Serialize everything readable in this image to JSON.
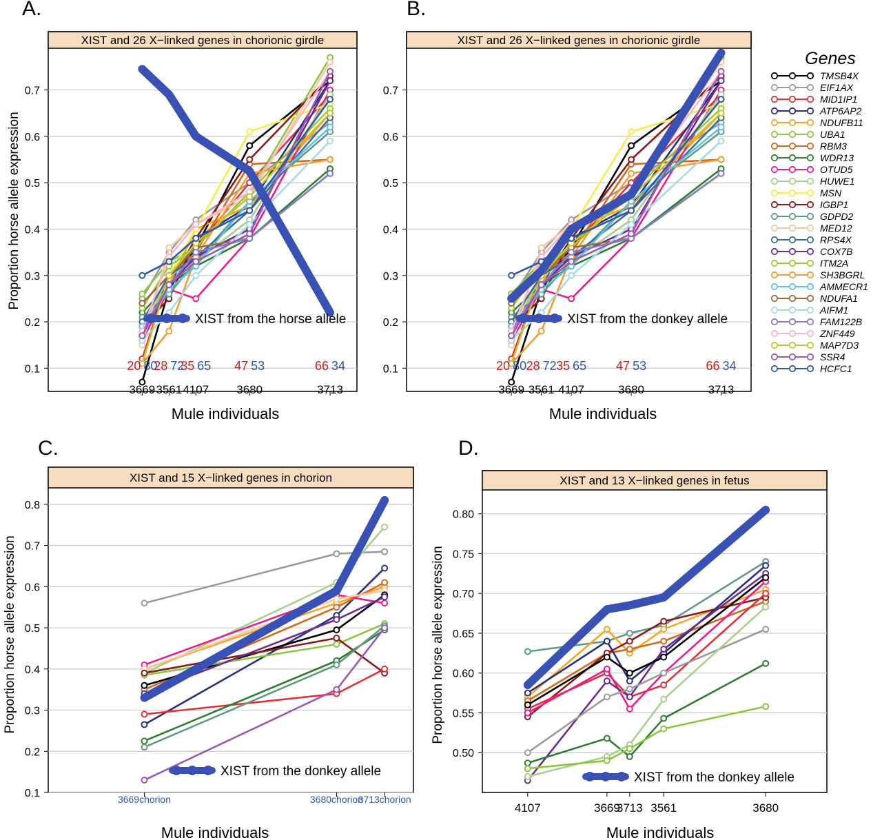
{
  "figure": {
    "xlabel": "Mule individuals",
    "ylabel": "Proportion horse allele expression",
    "legend_title": "Genes",
    "gene_names": [
      "TMSB4X",
      "EIF1AX",
      "MID1IP1",
      "ATP6AP2",
      "NDUFB11",
      "UBA1",
      "RBM3",
      "WDR13",
      "OTUD5",
      "HUWE1",
      "MSN",
      "IGBP1",
      "GDPD2",
      "MED12",
      "RPS4X",
      "COX7B",
      "ITM2A",
      "SH3BGRL",
      "AMMECR1",
      "NDUFA1",
      "AIFM1",
      "FAM122B",
      "ZNF449",
      "MAP7D3",
      "SSR4",
      "HCFC1"
    ],
    "gene_colors": [
      "#000000",
      "#9a9a9a",
      "#e0303a",
      "#2b2f7a",
      "#f5a623",
      "#8cc63f",
      "#d2691e",
      "#2e7d32",
      "#e91e8c",
      "#a8d08d",
      "#f2ee4a",
      "#8b1a1a",
      "#5f9b82",
      "#f6c7a0",
      "#3b6e8f",
      "#6a2c91",
      "#9acd32",
      "#f39c32",
      "#5bc0eb",
      "#9c6b3c",
      "#a6d9e8",
      "#7f7fcf",
      "#f7b6c8",
      "#c9c234",
      "#9b59b6",
      "#3156a8"
    ],
    "xist_color": "#3951b2",
    "horse_label_color": "#cc1f1f",
    "donkey_label_color": "#3156a8",
    "panel_header_color": "#f8dcc0"
  },
  "chart_data": [
    {
      "type": "line",
      "panel": "A.",
      "title": "XIST and 26 X−linked genes in chorionic girdle",
      "categories": [
        "3669",
        "3561",
        "4107",
        "3680",
        "3713"
      ],
      "x": [
        3.5,
        4.5,
        5.5,
        7.5,
        10.5
      ],
      "xlim": [
        0,
        11.5
      ],
      "ylim": [
        0.05,
        0.79
      ],
      "yticks": [
        0.1,
        0.2,
        0.3,
        0.4,
        0.5,
        0.6,
        0.7
      ],
      "ytick_labels": [
        "0.1",
        "0.2",
        "0.3",
        "0.4",
        "0.5",
        "0.6",
        "0.7"
      ],
      "xist": {
        "label": "XIST from the horse allele",
        "values": [
          0.745,
          0.69,
          0.6,
          0.525,
          0.22
        ]
      },
      "allele_horse": [
        "20",
        "28",
        "35",
        "47",
        "66"
      ],
      "allele_donkey": [
        "80",
        "72",
        "65",
        "53",
        "34"
      ],
      "series": [
        {
          "name": "TMSB4X",
          "values": [
            0.07,
            0.27,
            0.36,
            0.58,
            0.72
          ]
        },
        {
          "name": "EIF1AX",
          "values": [
            0.25,
            0.35,
            0.42,
            0.5,
            0.63
          ]
        },
        {
          "name": "MID1IP1",
          "values": [
            0.12,
            0.3,
            0.36,
            0.5,
            0.69
          ]
        },
        {
          "name": "ATP6AP2",
          "values": [
            0.17,
            0.28,
            0.38,
            0.45,
            0.72
          ]
        },
        {
          "name": "NDUFB11",
          "values": [
            0.2,
            0.28,
            0.4,
            0.45,
            0.65
          ]
        },
        {
          "name": "UBA1",
          "values": [
            0.26,
            0.33,
            0.36,
            0.48,
            0.77
          ]
        },
        {
          "name": "RBM3",
          "values": [
            0.24,
            0.3,
            0.35,
            0.54,
            0.55
          ]
        },
        {
          "name": "WDR13",
          "values": [
            0.22,
            0.28,
            0.32,
            0.38,
            0.53
          ]
        },
        {
          "name": "OTUD5",
          "values": [
            0.16,
            0.27,
            0.25,
            0.38,
            0.7
          ]
        },
        {
          "name": "HUWE1",
          "values": [
            0.18,
            0.3,
            0.33,
            0.42,
            0.69
          ]
        },
        {
          "name": "MSN",
          "values": [
            0.2,
            0.3,
            0.4,
            0.61,
            0.67
          ]
        },
        {
          "name": "IGBP1",
          "values": [
            0.19,
            0.25,
            0.38,
            0.55,
            0.73
          ]
        },
        {
          "name": "GDPD2",
          "values": [
            0.21,
            0.26,
            0.33,
            0.46,
            0.61
          ]
        },
        {
          "name": "MED12",
          "values": [
            0.15,
            0.36,
            0.41,
            0.47,
            0.76
          ]
        },
        {
          "name": "RPS4X",
          "values": [
            0.2,
            0.3,
            0.34,
            0.44,
            0.64
          ]
        },
        {
          "name": "COX7B",
          "values": [
            0.18,
            0.28,
            0.34,
            0.4,
            0.72
          ]
        },
        {
          "name": "ITM2A",
          "values": [
            0.23,
            0.32,
            0.36,
            0.48,
            0.66
          ]
        },
        {
          "name": "SH3BGRL",
          "values": [
            0.11,
            0.18,
            0.34,
            0.52,
            0.55
          ]
        },
        {
          "name": "AMMECR1",
          "values": [
            0.19,
            0.27,
            0.32,
            0.46,
            0.62
          ]
        },
        {
          "name": "NDUFA1",
          "values": [
            0.24,
            0.3,
            0.36,
            0.38,
            0.52
          ]
        },
        {
          "name": "AIFM1",
          "values": [
            0.16,
            0.22,
            0.3,
            0.41,
            0.59
          ]
        },
        {
          "name": "FAM122B",
          "values": [
            0.18,
            0.28,
            0.35,
            0.38,
            0.52
          ]
        },
        {
          "name": "ZNF449",
          "values": [
            0.18,
            0.34,
            0.41,
            0.48,
            0.74
          ]
        },
        {
          "name": "MAP7D3",
          "values": [
            0.11,
            0.3,
            0.37,
            0.47,
            0.65
          ]
        },
        {
          "name": "SSR4",
          "values": [
            0.17,
            0.28,
            0.33,
            0.39,
            0.74
          ]
        },
        {
          "name": "HCFC1",
          "values": [
            0.3,
            0.33,
            0.38,
            0.44,
            0.68
          ]
        }
      ]
    },
    {
      "type": "line",
      "panel": "B.",
      "title": "XIST and 26 X−linked genes in chorionic girdle",
      "categories": [
        "3669",
        "3561",
        "4107",
        "3680",
        "3713"
      ],
      "x": [
        3.5,
        4.5,
        5.5,
        7.5,
        10.5
      ],
      "xlim": [
        0,
        11.5
      ],
      "ylim": [
        0.05,
        0.79
      ],
      "yticks": [
        0.1,
        0.2,
        0.3,
        0.4,
        0.5,
        0.6,
        0.7
      ],
      "ytick_labels": [
        "0.1",
        "0.2",
        "0.3",
        "0.4",
        "0.5",
        "0.6",
        "0.7"
      ],
      "xist": {
        "label": "XIST from the donkey allele",
        "values": [
          0.25,
          0.31,
          0.4,
          0.475,
          0.78
        ]
      },
      "allele_horse": [
        "20",
        "28",
        "35",
        "47",
        "66"
      ],
      "allele_donkey": [
        "80",
        "72",
        "65",
        "53",
        "34"
      ],
      "series": [
        {
          "name": "TMSB4X",
          "values": [
            0.07,
            0.27,
            0.36,
            0.58,
            0.72
          ]
        },
        {
          "name": "EIF1AX",
          "values": [
            0.25,
            0.35,
            0.42,
            0.5,
            0.63
          ]
        },
        {
          "name": "MID1IP1",
          "values": [
            0.12,
            0.3,
            0.36,
            0.5,
            0.69
          ]
        },
        {
          "name": "ATP6AP2",
          "values": [
            0.17,
            0.28,
            0.38,
            0.45,
            0.72
          ]
        },
        {
          "name": "NDUFB11",
          "values": [
            0.2,
            0.28,
            0.4,
            0.45,
            0.65
          ]
        },
        {
          "name": "UBA1",
          "values": [
            0.26,
            0.33,
            0.36,
            0.48,
            0.77
          ]
        },
        {
          "name": "RBM3",
          "values": [
            0.24,
            0.3,
            0.35,
            0.54,
            0.55
          ]
        },
        {
          "name": "WDR13",
          "values": [
            0.22,
            0.28,
            0.32,
            0.38,
            0.53
          ]
        },
        {
          "name": "OTUD5",
          "values": [
            0.16,
            0.27,
            0.25,
            0.38,
            0.7
          ]
        },
        {
          "name": "HUWE1",
          "values": [
            0.18,
            0.3,
            0.33,
            0.42,
            0.69
          ]
        },
        {
          "name": "MSN",
          "values": [
            0.2,
            0.3,
            0.4,
            0.61,
            0.67
          ]
        },
        {
          "name": "IGBP1",
          "values": [
            0.19,
            0.25,
            0.38,
            0.55,
            0.73
          ]
        },
        {
          "name": "GDPD2",
          "values": [
            0.21,
            0.26,
            0.33,
            0.46,
            0.61
          ]
        },
        {
          "name": "MED12",
          "values": [
            0.15,
            0.36,
            0.41,
            0.47,
            0.76
          ]
        },
        {
          "name": "RPS4X",
          "values": [
            0.2,
            0.3,
            0.34,
            0.44,
            0.64
          ]
        },
        {
          "name": "COX7B",
          "values": [
            0.18,
            0.28,
            0.34,
            0.4,
            0.72
          ]
        },
        {
          "name": "ITM2A",
          "values": [
            0.23,
            0.32,
            0.36,
            0.48,
            0.66
          ]
        },
        {
          "name": "SH3BGRL",
          "values": [
            0.11,
            0.18,
            0.34,
            0.52,
            0.55
          ]
        },
        {
          "name": "AMMECR1",
          "values": [
            0.19,
            0.27,
            0.32,
            0.46,
            0.62
          ]
        },
        {
          "name": "NDUFA1",
          "values": [
            0.24,
            0.3,
            0.36,
            0.38,
            0.52
          ]
        },
        {
          "name": "AIFM1",
          "values": [
            0.16,
            0.22,
            0.3,
            0.41,
            0.59
          ]
        },
        {
          "name": "FAM122B",
          "values": [
            0.18,
            0.28,
            0.35,
            0.38,
            0.52
          ]
        },
        {
          "name": "ZNF449",
          "values": [
            0.18,
            0.34,
            0.41,
            0.48,
            0.74
          ]
        },
        {
          "name": "MAP7D3",
          "values": [
            0.11,
            0.3,
            0.37,
            0.47,
            0.65
          ]
        },
        {
          "name": "SSR4",
          "values": [
            0.17,
            0.28,
            0.33,
            0.39,
            0.74
          ]
        },
        {
          "name": "HCFC1",
          "values": [
            0.3,
            0.33,
            0.38,
            0.44,
            0.68
          ]
        }
      ]
    },
    {
      "type": "line",
      "panel": "C.",
      "title": "XIST and 15 X−linked genes in chorion",
      "categories": [
        "3669chorion",
        "3680chorion",
        "3713chorion"
      ],
      "x": [
        1,
        3,
        3.5
      ],
      "xlim": [
        0.0,
        3.8
      ],
      "ylim": [
        0.1,
        0.84
      ],
      "yticks": [
        0.1,
        0.2,
        0.3,
        0.4,
        0.5,
        0.6,
        0.7,
        0.8
      ],
      "ytick_labels": [
        "0.1",
        "0.2",
        "0.3",
        "0.4",
        "0.5",
        "0.6",
        "0.7",
        "0.8"
      ],
      "xist": {
        "label": "XIST from the donkey allele",
        "values": [
          0.33,
          0.59,
          0.81
        ]
      },
      "series": [
        {
          "name": "EIF1AX",
          "values": [
            0.56,
            0.68,
            0.685
          ]
        },
        {
          "name": "HUWE1",
          "values": [
            0.39,
            0.61,
            0.745
          ]
        },
        {
          "name": "ATP6AP2",
          "values": [
            0.265,
            0.53,
            0.645
          ]
        },
        {
          "name": "NDUFB11",
          "values": [
            0.4,
            0.56,
            0.6
          ]
        },
        {
          "name": "RBM3",
          "values": [
            0.35,
            0.55,
            0.61
          ]
        },
        {
          "name": "OTUD5",
          "values": [
            0.41,
            0.58,
            0.56
          ]
        },
        {
          "name": "MED12",
          "values": [
            0.4,
            0.57,
            0.59
          ]
        },
        {
          "name": "TMSB4X",
          "values": [
            0.36,
            0.495,
            0.58
          ]
        },
        {
          "name": "UBA1",
          "values": [
            0.385,
            0.46,
            0.51
          ]
        },
        {
          "name": "IGBP1",
          "values": [
            0.39,
            0.475,
            0.39
          ]
        },
        {
          "name": "MID1IP1",
          "values": [
            0.29,
            0.34,
            0.4
          ]
        },
        {
          "name": "WDR13",
          "values": [
            0.225,
            0.42,
            0.495
          ]
        },
        {
          "name": "GDPD2",
          "values": [
            0.21,
            0.41,
            0.505
          ]
        },
        {
          "name": "SSR4",
          "values": [
            0.13,
            0.35,
            0.5
          ]
        },
        {
          "name": "COX7B",
          "values": [
            0.34,
            0.52,
            0.575
          ]
        }
      ]
    },
    {
      "type": "line",
      "panel": "D.",
      "title": "XIST and 13 X−linked genes in fetus",
      "categories": [
        "4107",
        "3669",
        "3713",
        "3561",
        "3680"
      ],
      "x": [
        1,
        2.75,
        3.25,
        4,
        6.25
      ],
      "xlim": [
        0,
        7.6
      ],
      "ylim": [
        0.45,
        0.83
      ],
      "yticks": [
        0.5,
        0.55,
        0.6,
        0.65,
        0.7,
        0.75,
        0.8
      ],
      "ytick_labels": [
        "0.50",
        "0.55",
        "0.60",
        "0.65",
        "0.70",
        "0.75",
        "0.80"
      ],
      "xist": {
        "label": "XIST from the donkey allele",
        "values": [
          0.585,
          0.68,
          0.685,
          0.695,
          0.805
        ]
      },
      "series": [
        {
          "name": "GDPD2",
          "values": [
            0.627,
            0.64,
            0.65,
            0.66,
            0.74
          ]
        },
        {
          "name": "NDUFB11",
          "values": [
            0.57,
            0.655,
            0.625,
            0.655,
            0.705
          ]
        },
        {
          "name": "RBM3",
          "values": [
            0.565,
            0.625,
            0.63,
            0.64,
            0.69
          ]
        },
        {
          "name": "IGBP1",
          "values": [
            0.545,
            0.625,
            0.64,
            0.665,
            0.695
          ]
        },
        {
          "name": "ATP6AP2",
          "values": [
            0.575,
            0.64,
            0.59,
            0.625,
            0.735
          ]
        },
        {
          "name": "MID1IP1",
          "values": [
            0.555,
            0.6,
            0.57,
            0.585,
            0.7
          ]
        },
        {
          "name": "OTUD5",
          "values": [
            0.55,
            0.605,
            0.555,
            0.6,
            0.715
          ]
        },
        {
          "name": "COX7B",
          "values": [
            0.465,
            0.59,
            0.57,
            0.63,
            0.725
          ]
        },
        {
          "name": "EIF1AX",
          "values": [
            0.5,
            0.57,
            0.58,
            0.6,
            0.655
          ]
        },
        {
          "name": "WDR13",
          "values": [
            0.487,
            0.518,
            0.495,
            0.543,
            0.612
          ]
        },
        {
          "name": "HUWE1",
          "values": [
            0.47,
            0.495,
            0.51,
            0.567,
            0.683
          ]
        },
        {
          "name": "UBA1",
          "values": [
            0.48,
            0.49,
            0.505,
            0.53,
            0.558
          ]
        },
        {
          "name": "TMSB4X",
          "values": [
            0.56,
            0.62,
            0.6,
            0.62,
            0.72
          ]
        }
      ]
    }
  ]
}
